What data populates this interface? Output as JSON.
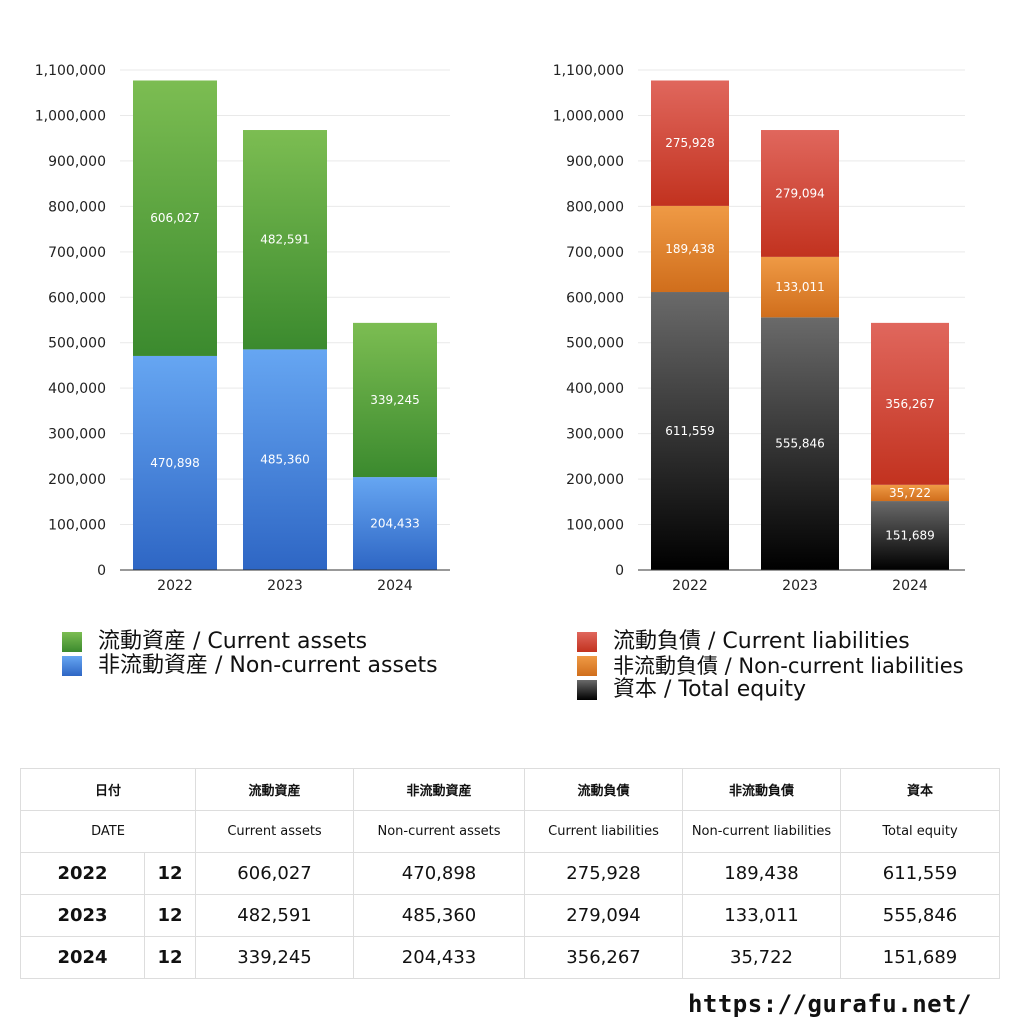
{
  "chart_data": [
    {
      "type": "bar",
      "stacked": true,
      "categories": [
        "2022",
        "2023",
        "2024"
      ],
      "ylim": [
        0,
        1100000
      ],
      "yticks": [
        "0",
        "100,000",
        "200,000",
        "300,000",
        "400,000",
        "500,000",
        "600,000",
        "700,000",
        "800,000",
        "900,000",
        "1,000,000",
        "1,100,000"
      ],
      "grid": true,
      "series": [
        {
          "name": "非流動資産 / Non-current assets",
          "values": [
            470898,
            485360,
            204433
          ],
          "labels": [
            "470,898",
            "485,360",
            "204,433"
          ],
          "color_top": "#66a6f2",
          "color_bottom": "#2e66c4"
        },
        {
          "name": "流動資産 / Current assets",
          "values": [
            606027,
            482591,
            339245
          ],
          "labels": [
            "606,027",
            "482,591",
            "339,245"
          ],
          "color_top": "#7cbd52",
          "color_bottom": "#3b8a2e"
        }
      ]
    },
    {
      "type": "bar",
      "stacked": true,
      "categories": [
        "2022",
        "2023",
        "2024"
      ],
      "ylim": [
        0,
        1100000
      ],
      "yticks": [
        "0",
        "100,000",
        "200,000",
        "300,000",
        "400,000",
        "500,000",
        "600,000",
        "700,000",
        "800,000",
        "900,000",
        "1,000,000",
        "1,100,000"
      ],
      "grid": true,
      "series": [
        {
          "name": "資本 / Total equity",
          "values": [
            611559,
            555846,
            151689
          ],
          "labels": [
            "611,559",
            "555,846",
            "151,689"
          ],
          "color_top": "#6a6a6a",
          "color_bottom": "#000000"
        },
        {
          "name": "非流動負債 / Non-current liabilities",
          "values": [
            189438,
            133011,
            35722
          ],
          "labels": [
            "189,438",
            "133,011",
            "35,722"
          ],
          "color_top": "#ef9a45",
          "color_bottom": "#d06e1c"
        },
        {
          "name": "流動負債 / Current liabilities",
          "values": [
            275928,
            279094,
            356267
          ],
          "labels": [
            "275,928",
            "279,094",
            "356,267"
          ],
          "color_top": "#e0675d",
          "color_bottom": "#c2321f"
        }
      ]
    }
  ],
  "legends": {
    "left": [
      {
        "label": "流動資産 / Current assets",
        "color": "#4a9a35"
      },
      {
        "label": "非流動資産 / Non-current assets",
        "color": "#3f7fdb"
      }
    ],
    "right": [
      {
        "label": "流動負債 / Current liabilities",
        "color": "#d4483a"
      },
      {
        "label": "非流動負債 / Non-current liabilities",
        "color": "#e5832a"
      },
      {
        "label": "資本 / Total equity",
        "color": "#222222"
      }
    ]
  },
  "table": {
    "header_jp": [
      "日付",
      "流動資産",
      "非流動資産",
      "流動負債",
      "非流動負債",
      "資本"
    ],
    "header_en": [
      "DATE",
      "Current assets",
      "Non-current assets",
      "Current liabilities",
      "Non-current liabilities",
      "Total equity"
    ],
    "rows": [
      {
        "year": "2022",
        "month": "12",
        "values": [
          "606,027",
          "470,898",
          "275,928",
          "189,438",
          "611,559"
        ]
      },
      {
        "year": "2023",
        "month": "12",
        "values": [
          "482,591",
          "485,360",
          "279,094",
          "133,011",
          "555,846"
        ]
      },
      {
        "year": "2024",
        "month": "12",
        "values": [
          "339,245",
          "204,433",
          "356,267",
          "35,722",
          "151,689"
        ]
      }
    ]
  },
  "footer": {
    "url": "https://gurafu.net/"
  }
}
